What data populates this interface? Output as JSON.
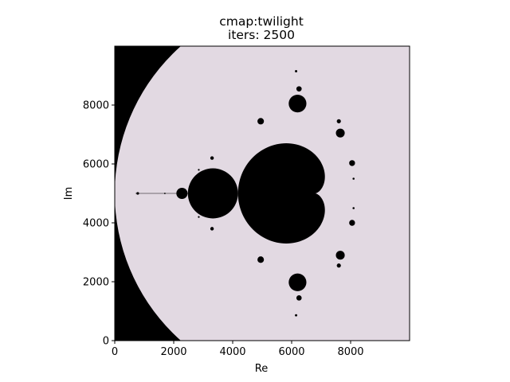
{
  "chart_data": {
    "type": "heatmap",
    "title": "cmap:twilight",
    "subtitle": "iters: 2500",
    "xlabel": "Re",
    "ylabel": "Im",
    "xlim": [
      0,
      10000
    ],
    "ylim": [
      0,
      10000
    ],
    "x_ticks": [
      0,
      2000,
      4000,
      6000,
      8000
    ],
    "y_ticks": [
      0,
      2000,
      4000,
      6000,
      8000
    ],
    "colormap": "twilight",
    "colors": {
      "escaped_region": "#e2d9e2",
      "set_region": "#000000"
    },
    "features": {
      "outer_boundary": {
        "circle_center": [
          6700,
          5000
        ],
        "circle_radius": 6700
      },
      "main_cardioid": {
        "cusp": [
          6800,
          5000
        ],
        "center": [
          6150,
          5000
        ],
        "radius": 2620
      },
      "period2_bulb": {
        "center": [
          3330,
          5000
        ],
        "radius": 850
      },
      "bulbs": [
        {
          "center": [
            2280,
            5000
          ],
          "radius": 190
        },
        {
          "center": [
            6200,
            8050
          ],
          "radius": 300
        },
        {
          "center": [
            6200,
            1980
          ],
          "radius": 300
        },
        {
          "center": [
            7650,
            7050
          ],
          "radius": 150
        },
        {
          "center": [
            7650,
            2900
          ],
          "radius": 150
        },
        {
          "center": [
            4950,
            7450
          ],
          "radius": 110
        },
        {
          "center": [
            4950,
            2750
          ],
          "radius": 110
        },
        {
          "center": [
            8050,
            6030
          ],
          "radius": 100
        },
        {
          "center": [
            8050,
            4000
          ],
          "radius": 100
        },
        {
          "center": [
            3300,
            6200
          ],
          "radius": 60
        },
        {
          "center": [
            3300,
            3800
          ],
          "radius": 60
        },
        {
          "center": [
            6250,
            8550
          ],
          "radius": 90
        },
        {
          "center": [
            6250,
            1450
          ],
          "radius": 90
        },
        {
          "center": [
            7600,
            7450
          ],
          "radius": 70
        },
        {
          "center": [
            7600,
            2550
          ],
          "radius": 70
        }
      ],
      "specks": [
        {
          "center": [
            780,
            5000
          ],
          "radius": 45
        },
        {
          "center": [
            1700,
            5000
          ],
          "radius": 25
        },
        {
          "center": [
            6150,
            9150
          ],
          "radius": 40
        },
        {
          "center": [
            6150,
            860
          ],
          "radius": 40
        },
        {
          "center": [
            2850,
            4200
          ],
          "radius": 30
        },
        {
          "center": [
            2850,
            5800
          ],
          "radius": 30
        },
        {
          "center": [
            8100,
            5500
          ],
          "radius": 35
        },
        {
          "center": [
            8100,
            4500
          ],
          "radius": 35
        }
      ]
    }
  }
}
